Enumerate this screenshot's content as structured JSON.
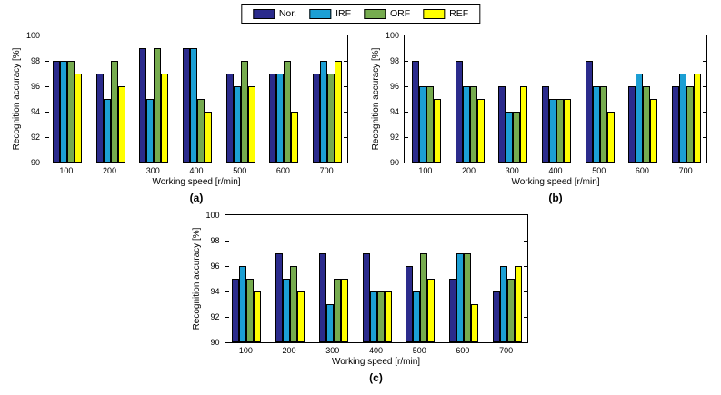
{
  "legend": {
    "items": [
      {
        "label": "Nor.",
        "color": "#2b2b8c"
      },
      {
        "label": "IRF",
        "color": "#1c9fd4"
      },
      {
        "label": "ORF",
        "color": "#76ab4f"
      },
      {
        "label": "REF",
        "color": "#ffff00"
      }
    ]
  },
  "chart_data": [
    {
      "id": "a",
      "type": "bar",
      "caption": "(a)",
      "xlabel": "Working speed [r/min]",
      "ylabel": "Recognition accuracy [%]",
      "ylim": [
        90,
        100
      ],
      "yticks": [
        90,
        92,
        94,
        96,
        98,
        100
      ],
      "categories": [
        "100",
        "200",
        "300",
        "400",
        "500",
        "600",
        "700"
      ],
      "legend_position": "top-center-outside",
      "grid": false,
      "series": [
        {
          "name": "Nor.",
          "color": "#2b2b8c",
          "values": [
            98,
            97,
            99,
            99,
            97,
            97,
            97
          ]
        },
        {
          "name": "IRF",
          "color": "#1c9fd4",
          "values": [
            98,
            95,
            95,
            99,
            96,
            97,
            98
          ]
        },
        {
          "name": "ORF",
          "color": "#76ab4f",
          "values": [
            98,
            98,
            99,
            95,
            98,
            98,
            97
          ]
        },
        {
          "name": "REF",
          "color": "#ffff00",
          "values": [
            97,
            96,
            97,
            94,
            96,
            94,
            98
          ]
        }
      ]
    },
    {
      "id": "b",
      "type": "bar",
      "caption": "(b)",
      "xlabel": "Working speed [r/min]",
      "ylabel": "Recognition accuracy [%]",
      "ylim": [
        90,
        100
      ],
      "yticks": [
        90,
        92,
        94,
        96,
        98,
        100
      ],
      "categories": [
        "100",
        "200",
        "300",
        "400",
        "500",
        "600",
        "700"
      ],
      "legend_position": "top-center-outside",
      "grid": false,
      "series": [
        {
          "name": "Nor.",
          "color": "#2b2b8c",
          "values": [
            98,
            98,
            96,
            96,
            98,
            96,
            96
          ]
        },
        {
          "name": "IRF",
          "color": "#1c9fd4",
          "values": [
            96,
            96,
            94,
            95,
            96,
            97,
            97
          ]
        },
        {
          "name": "ORF",
          "color": "#76ab4f",
          "values": [
            96,
            96,
            94,
            95,
            96,
            96,
            96
          ]
        },
        {
          "name": "REF",
          "color": "#ffff00",
          "values": [
            95,
            95,
            96,
            95,
            94,
            95,
            97
          ]
        }
      ]
    },
    {
      "id": "c",
      "type": "bar",
      "caption": "(c)",
      "xlabel": "Working speed [r/min]",
      "ylabel": "Recognition accuracy [%]",
      "ylim": [
        90,
        100
      ],
      "yticks": [
        90,
        92,
        94,
        96,
        98,
        100
      ],
      "categories": [
        "100",
        "200",
        "300",
        "400",
        "500",
        "600",
        "700"
      ],
      "legend_position": "top-center-outside",
      "grid": false,
      "series": [
        {
          "name": "Nor.",
          "color": "#2b2b8c",
          "values": [
            95,
            97,
            97,
            97,
            96,
            95,
            94
          ]
        },
        {
          "name": "IRF",
          "color": "#1c9fd4",
          "values": [
            96,
            95,
            93,
            94,
            94,
            97,
            96
          ]
        },
        {
          "name": "ORF",
          "color": "#76ab4f",
          "values": [
            95,
            96,
            95,
            94,
            97,
            97,
            95
          ]
        },
        {
          "name": "REF",
          "color": "#ffff00",
          "values": [
            94,
            94,
            95,
            94,
            95,
            93,
            96
          ]
        }
      ]
    }
  ]
}
